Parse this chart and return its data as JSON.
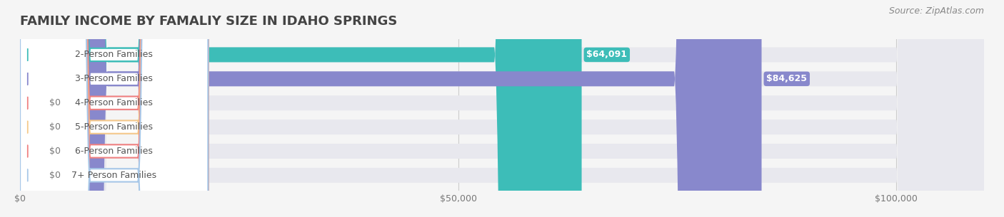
{
  "title": "FAMILY INCOME BY FAMALIY SIZE IN IDAHO SPRINGS",
  "source": "Source: ZipAtlas.com",
  "categories": [
    "2-Person Families",
    "3-Person Families",
    "4-Person Families",
    "5-Person Families",
    "6-Person Families",
    "7+ Person Families"
  ],
  "values": [
    64091,
    84625,
    0,
    0,
    0,
    0
  ],
  "bar_colors": [
    "#3dbdb8",
    "#8888cc",
    "#f08080",
    "#f5c98a",
    "#f08080",
    "#a8c8e8"
  ],
  "label_colors": [
    "#3dbdb8",
    "#8888cc",
    "#f08080",
    "#f5c98a",
    "#f08080",
    "#a8c8e8"
  ],
  "value_labels": [
    "$64,091",
    "$84,625",
    "$0",
    "$0",
    "$0",
    "$0"
  ],
  "xlim": [
    0,
    110000
  ],
  "xticks": [
    0,
    50000,
    100000
  ],
  "xtick_labels": [
    "$0",
    "$50,000",
    "$100,000"
  ],
  "background_color": "#f5f5f5",
  "bar_background_color": "#e8e8ee",
  "title_fontsize": 13,
  "label_fontsize": 9,
  "value_fontsize": 9,
  "source_fontsize": 9
}
